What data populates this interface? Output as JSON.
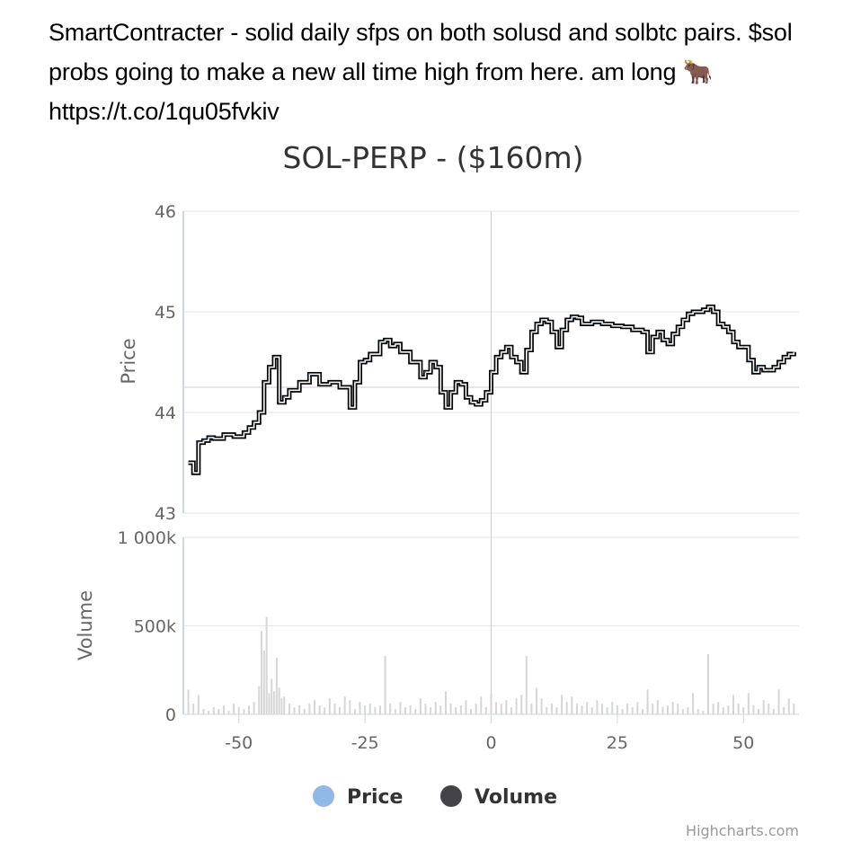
{
  "post": {
    "lines": [
      "SmartContracter - solid daily sfps on both solusd and solbtc pairs. $sol",
      "probs going to make a new all time high from here. am long 🐂",
      "https://t.co/1qu05fvkiv"
    ]
  },
  "chart_data": {
    "type": "line",
    "title": "SOL-PERP - ($160m)",
    "xaxis": {
      "ticks": [
        "-50",
        "-25",
        "0",
        "25",
        "50"
      ],
      "tick_values": [
        -50,
        -25,
        0,
        25,
        50
      ],
      "range": [
        -61,
        61
      ],
      "crosshair_at": 0
    },
    "price_axis": {
      "title": "Price",
      "range": [
        43,
        46
      ],
      "ticks": [
        "43",
        "44",
        "45",
        "46"
      ],
      "tick_values": [
        43,
        44,
        45,
        46
      ],
      "crosshair_at": 44.25
    },
    "volume_axis": {
      "title": "Volume",
      "range": [
        0,
        1000000
      ],
      "ticks": [
        "0",
        "500k",
        "1 000k"
      ],
      "tick_values": [
        0,
        500000,
        1000000
      ]
    },
    "series": [
      {
        "name": "Price",
        "color": "#90b8e8",
        "line_color": "#000000",
        "x": [
          -60,
          -59,
          -58,
          -57,
          -56,
          -55,
          -53,
          -51,
          -49,
          -48,
          -47,
          -46,
          -45,
          -44,
          -43,
          -42,
          -41,
          -40,
          -38,
          -36,
          -34,
          -32,
          -30,
          -28,
          -27,
          -26,
          -25,
          -24,
          -22,
          -21,
          -20,
          -19,
          -18,
          -16,
          -14,
          -13,
          -12,
          -11,
          -10,
          -9,
          -8,
          -7,
          -6,
          -5,
          -4,
          -3,
          -2,
          -1,
          0,
          1,
          2,
          3,
          4,
          5,
          6,
          7,
          8,
          9,
          10,
          11,
          12,
          13,
          14,
          15,
          16,
          17,
          18,
          20,
          22,
          24,
          26,
          28,
          30,
          31,
          32,
          33,
          34,
          35,
          36,
          37,
          38,
          39,
          40,
          42,
          43,
          44,
          45,
          46,
          47,
          48,
          49,
          50,
          51,
          52,
          53,
          54,
          55,
          56,
          57,
          58,
          59,
          60
        ],
        "values": [
          43.5,
          43.4,
          43.7,
          43.72,
          43.75,
          43.74,
          43.78,
          43.76,
          43.8,
          43.85,
          43.9,
          44.0,
          44.3,
          44.45,
          44.55,
          44.1,
          44.15,
          44.22,
          44.3,
          44.38,
          44.28,
          44.3,
          44.25,
          44.05,
          44.3,
          44.5,
          44.52,
          44.58,
          44.7,
          44.72,
          44.66,
          44.68,
          44.6,
          44.5,
          44.35,
          44.4,
          44.5,
          44.45,
          44.2,
          44.05,
          44.2,
          44.3,
          44.28,
          44.15,
          44.1,
          44.08,
          44.12,
          44.2,
          44.4,
          44.55,
          44.6,
          44.65,
          44.55,
          44.5,
          44.4,
          44.62,
          44.8,
          44.88,
          44.92,
          44.9,
          44.8,
          44.65,
          44.82,
          44.92,
          44.95,
          44.94,
          44.88,
          44.9,
          44.88,
          44.86,
          44.85,
          44.82,
          44.8,
          44.6,
          44.75,
          44.8,
          44.72,
          44.68,
          44.78,
          44.85,
          44.92,
          44.98,
          45.0,
          45.02,
          45.05,
          45.0,
          44.88,
          44.85,
          44.8,
          44.7,
          44.65,
          44.65,
          44.52,
          44.4,
          44.45,
          44.42,
          44.42,
          44.45,
          44.5,
          44.55,
          44.58,
          44.6
        ]
      },
      {
        "name": "Volume",
        "color": "#434348",
        "x": [
          -60,
          -59,
          -58,
          -57,
          -56,
          -55,
          -54,
          -53,
          -52,
          -51,
          -50,
          -49,
          -48,
          -47,
          -46,
          -45.5,
          -45,
          -44.5,
          -44,
          -43.5,
          -43,
          -42.5,
          -42,
          -41.5,
          -41,
          -40,
          -39,
          -38,
          -37,
          -36,
          -35,
          -34,
          -33,
          -32,
          -31,
          -30,
          -29,
          -28,
          -27,
          -26,
          -25,
          -24,
          -23,
          -22,
          -21,
          -20,
          -19,
          -18,
          -17,
          -16,
          -15,
          -14,
          -13,
          -12,
          -11,
          -10,
          -9,
          -8,
          -7,
          -6,
          -5,
          -4,
          -3,
          -2,
          -1,
          0,
          1,
          2,
          3,
          4,
          5,
          6,
          7,
          8,
          9,
          10,
          11,
          12,
          13,
          14,
          15,
          16,
          17,
          18,
          19,
          20,
          21,
          22,
          23,
          24,
          25,
          26,
          27,
          28,
          29,
          30,
          31,
          32,
          33,
          34,
          35,
          36,
          37,
          38,
          39,
          40,
          41,
          42,
          43,
          44,
          45,
          46,
          47,
          48,
          49,
          50,
          51,
          52,
          53,
          54,
          55,
          56,
          57,
          58,
          59,
          60
        ],
        "values": [
          140000,
          60000,
          110000,
          30000,
          20000,
          40000,
          30000,
          50000,
          20000,
          60000,
          40000,
          30000,
          50000,
          70000,
          160000,
          470000,
          360000,
          550000,
          120000,
          200000,
          130000,
          320000,
          150000,
          90000,
          100000,
          60000,
          40000,
          50000,
          30000,
          60000,
          80000,
          50000,
          40000,
          90000,
          60000,
          40000,
          100000,
          80000,
          30000,
          70000,
          50000,
          60000,
          40000,
          50000,
          330000,
          60000,
          30000,
          70000,
          40000,
          50000,
          30000,
          90000,
          60000,
          40000,
          70000,
          50000,
          130000,
          60000,
          40000,
          50000,
          80000,
          30000,
          60000,
          100000,
          40000,
          120000,
          70000,
          60000,
          80000,
          40000,
          90000,
          110000,
          330000,
          60000,
          150000,
          90000,
          40000,
          60000,
          40000,
          110000,
          70000,
          100000,
          60000,
          50000,
          70000,
          40000,
          80000,
          60000,
          40000,
          70000,
          50000,
          30000,
          60000,
          40000,
          70000,
          30000,
          140000,
          60000,
          80000,
          40000,
          50000,
          70000,
          60000,
          30000,
          40000,
          120000,
          30000,
          20000,
          340000,
          60000,
          70000,
          40000,
          50000,
          110000,
          60000,
          40000,
          120000,
          50000,
          30000,
          80000,
          60000,
          30000,
          140000,
          40000,
          90000,
          60000
        ]
      }
    ],
    "legend": {
      "position": "bottom-center",
      "items": [
        "Price",
        "Volume"
      ]
    },
    "grid": true,
    "credits": "Highcharts.com"
  }
}
